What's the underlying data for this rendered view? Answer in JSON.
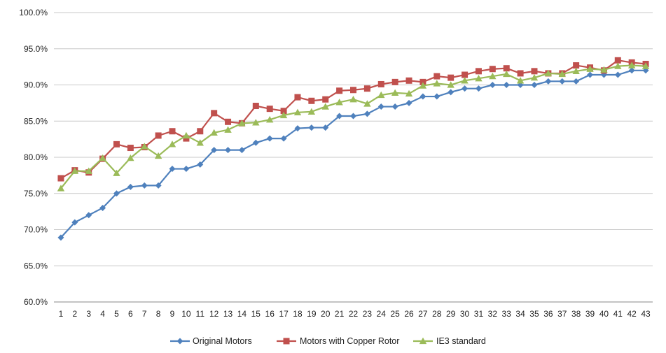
{
  "chart_data": {
    "type": "line",
    "title": "",
    "xlabel": "",
    "ylabel": "",
    "ylim": [
      60,
      100
    ],
    "y_tick_labels": [
      "60.0%",
      "65.0%",
      "70.0%",
      "75.0%",
      "80.0%",
      "85.0%",
      "90.0%",
      "95.0%",
      "100.0%"
    ],
    "y_ticks": [
      60,
      65,
      70,
      75,
      80,
      85,
      90,
      95,
      100
    ],
    "categories": [
      "1",
      "2",
      "3",
      "4",
      "5",
      "6",
      "7",
      "8",
      "9",
      "10",
      "11",
      "12",
      "13",
      "14",
      "15",
      "16",
      "17",
      "18",
      "19",
      "20",
      "21",
      "22",
      "23",
      "24",
      "25",
      "26",
      "27",
      "28",
      "29",
      "30",
      "31",
      "32",
      "33",
      "34",
      "35",
      "36",
      "37",
      "38",
      "39",
      "40",
      "41",
      "42",
      "43"
    ],
    "grid": true,
    "legend_position": "bottom",
    "series": [
      {
        "name": "Original Motors",
        "color": "#4f81bd",
        "marker": "diamond",
        "values": [
          68.9,
          71.0,
          72.0,
          73.0,
          75.0,
          75.9,
          76.1,
          76.1,
          78.4,
          78.4,
          79.0,
          81.0,
          81.0,
          81.0,
          82.0,
          82.6,
          82.6,
          84.0,
          84.1,
          84.1,
          85.7,
          85.7,
          86.0,
          87.0,
          87.0,
          87.5,
          88.4,
          88.4,
          89.0,
          89.5,
          89.5,
          90.0,
          90.0,
          90.0,
          90.0,
          90.5,
          90.5,
          90.5,
          91.4,
          91.4,
          91.4,
          92.0,
          92.0
        ]
      },
      {
        "name": "Motors with Copper Rotor",
        "color": "#c0504d",
        "marker": "square",
        "values": [
          77.1,
          78.2,
          77.9,
          79.8,
          81.8,
          81.3,
          81.4,
          83.0,
          83.6,
          82.6,
          83.6,
          86.1,
          84.9,
          84.7,
          87.1,
          86.7,
          86.4,
          88.3,
          87.8,
          88.0,
          89.2,
          89.3,
          89.5,
          90.1,
          90.4,
          90.6,
          90.4,
          91.2,
          91.0,
          91.4,
          91.9,
          92.2,
          92.3,
          91.6,
          91.9,
          91.6,
          91.6,
          92.7,
          92.4,
          92.0,
          93.4,
          93.1,
          92.9
        ]
      },
      {
        "name": "IE3 standard",
        "color": "#9bbb59",
        "marker": "triangle",
        "values": [
          75.7,
          78.1,
          78.1,
          79.9,
          77.8,
          79.9,
          81.5,
          80.2,
          81.8,
          83.0,
          82.0,
          83.4,
          83.8,
          84.7,
          84.8,
          85.2,
          85.8,
          86.2,
          86.3,
          87.0,
          87.6,
          88.0,
          87.4,
          88.6,
          88.9,
          88.8,
          89.9,
          90.2,
          90.0,
          90.6,
          90.9,
          91.2,
          91.5,
          90.6,
          91.0,
          91.6,
          91.5,
          91.9,
          92.2,
          92.1,
          92.6,
          92.7,
          92.6
        ]
      }
    ]
  }
}
